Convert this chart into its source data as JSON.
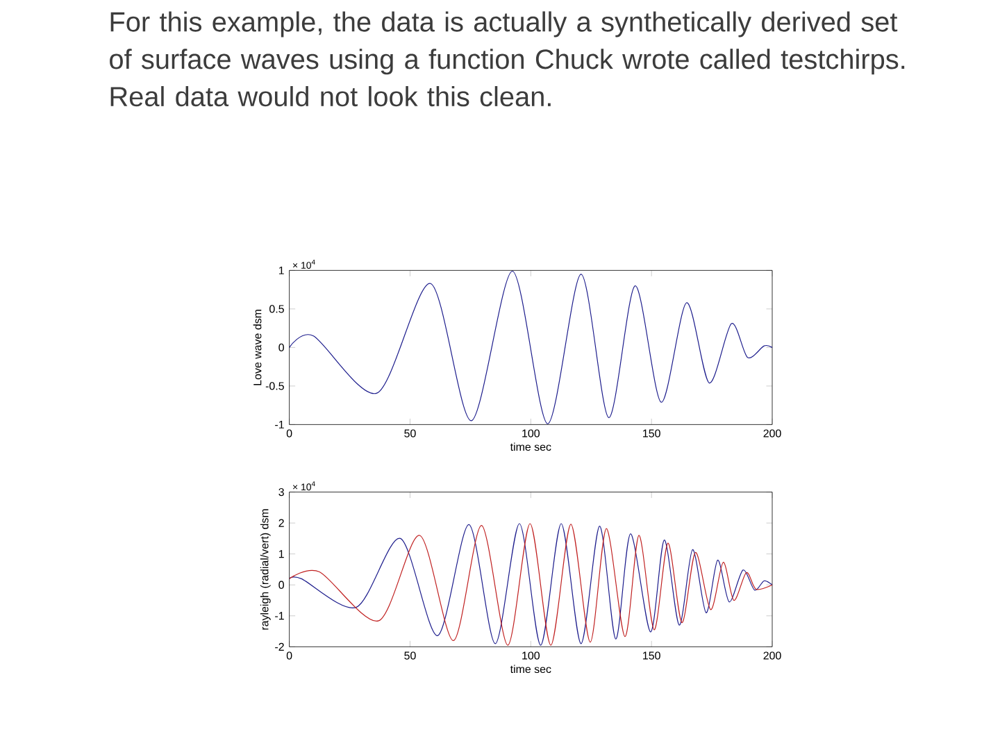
{
  "chart_data": [
    {
      "type": "line",
      "title": "For this example, the data is actually a synthetically derived set of surface waves using a function Chuck wrote called testchirps. Real data would not look this clean.",
      "xlabel": "time sec",
      "ylabel": "Love wave dsm",
      "annotations": [
        "× 10$^{4}$"
      ],
      "xlim": [
        0,
        200
      ],
      "xticks": [
        0,
        50,
        100,
        150,
        200
      ],
      "ylim": [
        -1,
        1
      ],
      "yticks": [
        -1,
        -0.5,
        0,
        0.5,
        1
      ],
      "grid": false,
      "marker": "none",
      "line_style": "solid",
      "x": [
        0,
        10,
        36.4,
        58.5,
        75.4,
        92.4,
        107,
        120.8,
        132.3,
        143.2,
        154,
        164.5,
        173.9,
        183.1,
        189.8,
        196.6,
        200
      ],
      "series": [
        {
          "color": "#1c1c8c",
          "values": [
            0,
            0.15,
            -0.59,
            0.83,
            -0.95,
            0.99,
            -0.99,
            0.95,
            -0.91,
            0.8,
            -0.71,
            0.58,
            -0.46,
            0.31,
            -0.13,
            0.02,
            0
          ]
        }
      ]
    },
    {
      "type": "line",
      "xlabel": "time sec",
      "ylabel": "rayleigh (radial/vert) dsm",
      "annotations": [
        "× 10$^{4}$"
      ],
      "xlim": [
        0,
        200
      ],
      "xticks": [
        0,
        50,
        100,
        150,
        200
      ],
      "ylim": [
        -2,
        3
      ],
      "yticks": [
        -2,
        -1,
        0,
        1,
        2,
        3
      ],
      "grid": false,
      "marker": "none",
      "line_style": "solid",
      "series": [
        {
          "color": "#1c1c8c",
          "x": [
            0,
            5,
            27.8,
            46,
            61.4,
            74.4,
            85.3,
            95.3,
            104.1,
            112.6,
            120.8,
            128.5,
            135.2,
            141.3,
            149.6,
            155.3,
            161.5,
            167,
            172.6,
            177.4,
            182.2,
            187.9,
            192.7,
            196.6,
            200
          ],
          "values": [
            0.2,
            0.2,
            -0.72,
            1.5,
            -1.64,
            1.95,
            -1.9,
            1.98,
            -1.95,
            1.98,
            -1.9,
            1.9,
            -1.75,
            1.65,
            -1.52,
            1.45,
            -1.3,
            1.14,
            -0.9,
            0.8,
            -0.55,
            0.48,
            -0.17,
            0.13,
            0
          ]
        },
        {
          "color": "#c02020",
          "x": [
            0,
            12.5,
            37,
            54,
            68,
            79.6,
            90.5,
            99.7,
            108.3,
            116.6,
            124.6,
            131.3,
            139,
            144.8,
            151.1,
            156.8,
            162.6,
            168.2,
            174.5,
            179.7,
            184.1,
            189.3,
            193.3,
            200
          ],
          "values": [
            0.2,
            0.42,
            -1.16,
            1.6,
            -1.8,
            1.92,
            -1.95,
            1.98,
            -1.95,
            1.96,
            -1.85,
            1.82,
            -1.67,
            1.6,
            -1.45,
            1.35,
            -1.22,
            1.05,
            -0.8,
            0.73,
            -0.5,
            0.4,
            -0.14,
            0
          ]
        }
      ]
    }
  ]
}
